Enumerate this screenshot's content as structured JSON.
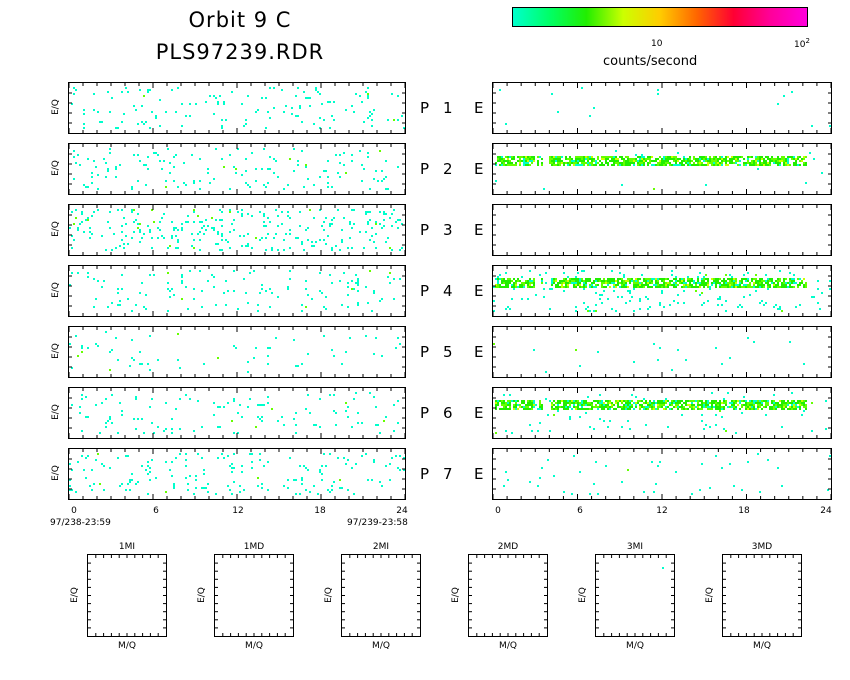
{
  "header": {
    "title_line1": "Orbit 9 C",
    "title_line2": "PLS97239.RDR"
  },
  "colorbar": {
    "label": "counts/second",
    "tick_10": "10",
    "tick_100_base": "10",
    "tick_100_exp": "2",
    "colors": [
      "#00ffcc",
      "#00ff66",
      "#22ee00",
      "#ccff00",
      "#ffcc00",
      "#ff6600",
      "#ff0033",
      "#ff0099",
      "#ff00dd"
    ]
  },
  "rows": [
    {
      "channel": "1",
      "p_label": "P",
      "e_label": "E",
      "left_density": 0.14,
      "right_density": 0.01,
      "right_band": false
    },
    {
      "channel": "2",
      "p_label": "P",
      "e_label": "E",
      "left_density": 0.12,
      "right_density": 0.02,
      "right_band": true
    },
    {
      "channel": "3",
      "p_label": "P",
      "e_label": "E",
      "left_density": 0.22,
      "right_density": 0.0,
      "right_band": false
    },
    {
      "channel": "4",
      "p_label": "P",
      "e_label": "E",
      "left_density": 0.1,
      "right_density": 0.14,
      "right_band": true
    },
    {
      "channel": "5",
      "p_label": "P",
      "e_label": "E",
      "left_density": 0.05,
      "right_density": 0.02,
      "right_band": false
    },
    {
      "channel": "6",
      "p_label": "P",
      "e_label": "E",
      "left_density": 0.1,
      "right_density": 0.06,
      "right_band": true
    },
    {
      "channel": "7",
      "p_label": "P",
      "e_label": "E",
      "left_density": 0.12,
      "right_density": 0.04,
      "right_band": false
    }
  ],
  "y_label": "E/Q",
  "x_axis": {
    "ticks": [
      "0",
      "6",
      "12",
      "18",
      "24"
    ],
    "range": [
      0,
      24
    ],
    "start_label": "97/238-23:59",
    "end_label": "97/239-23:58"
  },
  "small_panels": [
    {
      "title": "1MI",
      "xlabel": "M/Q",
      "ylabel": "E/Q"
    },
    {
      "title": "1MD",
      "xlabel": "M/Q",
      "ylabel": "E/Q"
    },
    {
      "title": "2MI",
      "xlabel": "M/Q",
      "ylabel": "E/Q"
    },
    {
      "title": "2MD",
      "xlabel": "M/Q",
      "ylabel": "E/Q"
    },
    {
      "title": "3MI",
      "xlabel": "M/Q",
      "ylabel": "E/Q"
    },
    {
      "title": "3MD",
      "xlabel": "M/Q",
      "ylabel": "E/Q"
    }
  ],
  "chart_data": {
    "type": "heatmap",
    "title": "Orbit 9 C",
    "subtitle": "PLS97239.RDR",
    "xlabel": "",
    "ylabel": "E/Q",
    "xlim": [
      0,
      24
    ],
    "x_ticks": [
      0,
      6,
      12,
      18,
      24
    ],
    "colorbar_label": "counts/second",
    "colorbar_scale": "log",
    "series": [
      {
        "name": "P 1",
        "mean_density": 0.14
      },
      {
        "name": "P 2",
        "mean_density": 0.12
      },
      {
        "name": "P 3",
        "mean_density": 0.22
      },
      {
        "name": "P 4",
        "mean_density": 0.1
      },
      {
        "name": "P 5",
        "mean_density": 0.05
      },
      {
        "name": "P 6",
        "mean_density": 0.1
      },
      {
        "name": "P 7",
        "mean_density": 0.12
      },
      {
        "name": "E 1",
        "mean_density": 0.01
      },
      {
        "name": "E 2",
        "mean_density": 0.02
      },
      {
        "name": "E 3",
        "mean_density": 0.0
      },
      {
        "name": "E 4",
        "mean_density": 0.14
      },
      {
        "name": "E 5",
        "mean_density": 0.02
      },
      {
        "name": "E 6",
        "mean_density": 0.06
      },
      {
        "name": "E 7",
        "mean_density": 0.04
      }
    ]
  }
}
